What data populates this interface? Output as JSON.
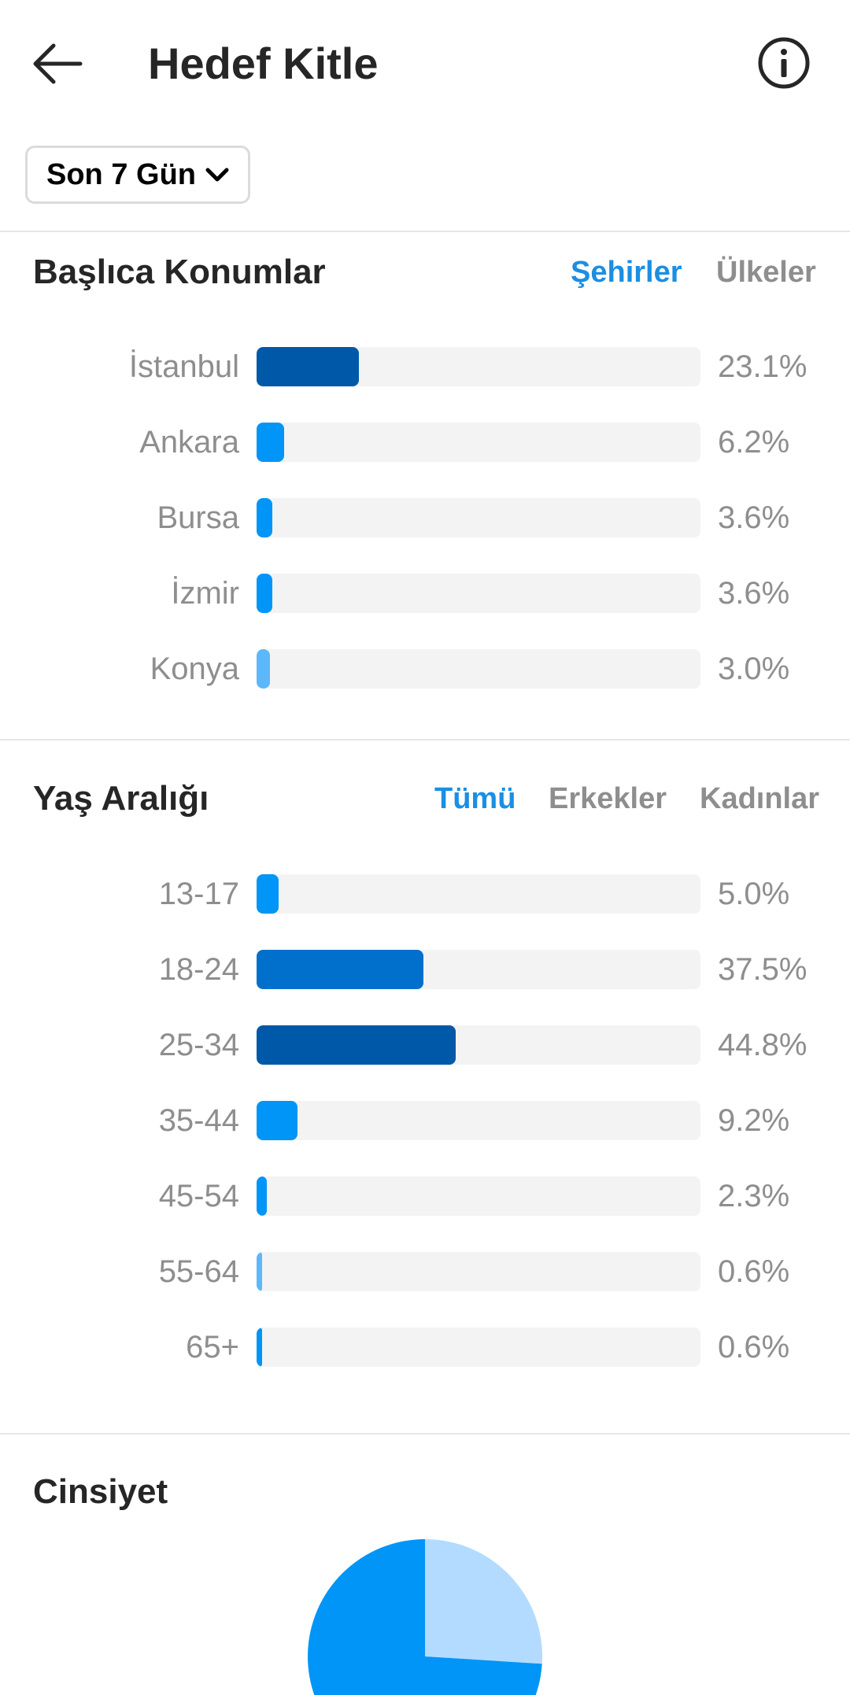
{
  "header": {
    "title": "Hedef Kitle"
  },
  "period": {
    "label": "Son 7 Gün"
  },
  "locations": {
    "title": "Başlıca Konumlar",
    "tabs": [
      {
        "label": "Şehirler",
        "active": true
      },
      {
        "label": "Ülkeler",
        "active": false
      }
    ],
    "rows": [
      {
        "label": "İstanbul",
        "value": "23.1%",
        "pct": 23.1,
        "color": "#0059a8"
      },
      {
        "label": "Ankara",
        "value": "6.2%",
        "pct": 6.2,
        "color": "#0095f6"
      },
      {
        "label": "Bursa",
        "value": "3.6%",
        "pct": 3.6,
        "color": "#0095f6"
      },
      {
        "label": "İzmir",
        "value": "3.6%",
        "pct": 3.6,
        "color": "#0095f6"
      },
      {
        "label": "Konya",
        "value": "3.0%",
        "pct": 3.0,
        "color": "#5cb8fb"
      }
    ]
  },
  "age": {
    "title": "Yaş Aralığı",
    "tabs": [
      {
        "label": "Tümü",
        "active": true
      },
      {
        "label": "Erkekler",
        "active": false
      },
      {
        "label": "Kadınlar",
        "active": false
      }
    ],
    "rows": [
      {
        "label": "13-17",
        "value": "5.0%",
        "pct": 5.0,
        "color": "#0095f6"
      },
      {
        "label": "18-24",
        "value": "37.5%",
        "pct": 37.5,
        "color": "#0070cc"
      },
      {
        "label": "25-34",
        "value": "44.8%",
        "pct": 44.8,
        "color": "#0059a8"
      },
      {
        "label": "35-44",
        "value": "9.2%",
        "pct": 9.2,
        "color": "#0095f6"
      },
      {
        "label": "45-54",
        "value": "2.3%",
        "pct": 2.3,
        "color": "#0095f6"
      },
      {
        "label": "55-64",
        "value": "0.6%",
        "pct": 0.6,
        "color": "#5cb8fb"
      },
      {
        "label": "65+",
        "value": "0.6%",
        "pct": 0.6,
        "color": "#0095f6"
      }
    ]
  },
  "gender": {
    "title": "Cinsiyet",
    "chart_data": {
      "type": "pie",
      "slices": [
        {
          "share": 0.26,
          "color": "#b3dbff"
        },
        {
          "share": 0.74,
          "color": "#0095f6"
        }
      ]
    }
  },
  "icons": {
    "back": "arrow-left-icon",
    "info": "info-icon",
    "dropdown": "chevron-down-icon"
  }
}
